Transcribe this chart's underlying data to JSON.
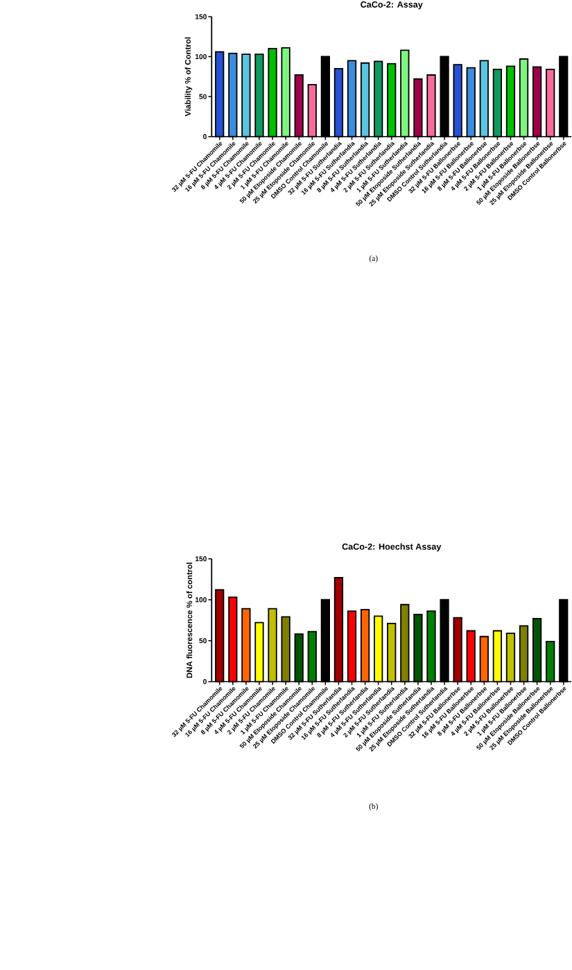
{
  "chart_data": [
    {
      "type": "bar",
      "title": "CaCo-2: Assay",
      "ylabel": "Viability % of Control",
      "categories": [
        "32 µM 5-FU Chamomile",
        "16 µM 5-FU Chamomile",
        "8 µM 5-FU Chamomile",
        "4 µM 5-FU Chamomile",
        "2 µM 5-FU Chamomile",
        "1 µM 5-FU Chamomile",
        "50 µM Etoposide Chamomile",
        "25 µM Etoposide Chamomile",
        "DMSO Control Chamomile",
        "32 µM 5-FU Sutherlandia",
        "16 µM 5-FU Sutherlandia",
        "8 µM 5-FU Sutherlandia",
        "4 µM 5-FU Sutherlandia",
        "2 µM 5-FU Sutherlandia",
        "1 µM 5-FU Sutherlandia",
        "50 µM Etoposide Sutherlandia",
        "25 µM Etoposide Sutherlandia",
        "DMSO Control Sutherlandia",
        "32 µM 5-FU Ballonerbse",
        "16 µM 5-FU Ballonerbse",
        "8 µM 5-FU Ballonerbse",
        "4 µM 5-FU Ballonerbse",
        "2 µM 5-FU Ballonerbse",
        "1 µM 5-FU Ballonerbse",
        "50 µM Etoposide Ballonerbse",
        "25 µM Etoposide Ballonerbse",
        "DMSO Control Ballonerbse"
      ],
      "values": [
        106,
        104,
        103,
        103,
        110,
        111,
        77,
        65,
        100,
        85,
        95,
        92,
        94,
        91,
        108,
        72,
        77,
        100,
        90,
        86,
        95,
        84,
        88,
        97,
        87,
        84,
        100
      ],
      "colors": [
        "#2651d4",
        "#3c8ce0",
        "#5bc4e0",
        "#0f9a60",
        "#00c000",
        "#7ff57f",
        "#a0004a",
        "#f76b9a",
        "#000000",
        "#2651d4",
        "#3c8ce0",
        "#5bc4e0",
        "#0f9a60",
        "#00c000",
        "#7ff57f",
        "#a0004a",
        "#f76b9a",
        "#000000",
        "#2651d4",
        "#3c8ce0",
        "#5bc4e0",
        "#0f9a60",
        "#00c000",
        "#7ff57f",
        "#a0004a",
        "#f76b9a",
        "#000000"
      ],
      "ylim": [
        0,
        150
      ],
      "yticks": [
        0,
        50,
        100,
        150
      ],
      "annotations": [
        "(a)"
      ]
    },
    {
      "type": "bar",
      "title": "CaCo-2: Hoechst Assay",
      "ylabel": "DNA fluorescence % of control",
      "categories": [
        "32 µM 5-FU Chamomile",
        "16 µM 5-FU Chamomile",
        "8 µM 5-FU Chamomile",
        "4 µM 5-FU Chamomile",
        "2 µM 5-FU Chamomile",
        "1 µM 5-FU Chamomile",
        "50 µM Etoposide Chamomile",
        "25 µM Etoposide Chamomile",
        "DMSO Control Chamomile",
        "32 µM 5-FU Sutherlandia",
        "16 µM 5-FU Sutherlandia",
        "8 µM 5-FU Sutherlandia",
        "4 µM 5-FU Sutherlandia",
        "2 µM 5-FU Sutherlandia",
        "1 µM 5-FU Sutherlandia",
        "50 µM Etoposide Sutherlandia",
        "25 µM Etoposide Sutherlandia",
        "DMSO Control Sutherlandia",
        "32 µM 5-FU Ballonerbse",
        "16 µM 5-FU Ballonerbse",
        "8 µM 5-FU Ballonerbse",
        "4 µM 5-FU Ballonerbse",
        "2 µM 5-FU Ballonerbse",
        "1 µM 5-FU Ballonerbse",
        "50 µM Etoposide Ballonerbse",
        "25 µM Etoposide Ballonerbse",
        "DMSO Control Ballonerbse"
      ],
      "values": [
        112,
        103,
        89,
        72,
        89,
        79,
        58,
        61,
        100,
        127,
        86,
        88,
        80,
        71,
        94,
        82,
        86,
        100,
        78,
        62,
        55,
        62,
        59,
        68,
        77,
        49,
        100
      ],
      "colors": [
        "#a00000",
        "#ff0000",
        "#ff6600",
        "#ffff00",
        "#c0c000",
        "#808000",
        "#005500",
        "#008000",
        "#000000",
        "#a00000",
        "#ff0000",
        "#ff6600",
        "#ffff00",
        "#c0c000",
        "#808000",
        "#005500",
        "#008000",
        "#000000",
        "#a00000",
        "#ff0000",
        "#ff6600",
        "#ffff00",
        "#c0c000",
        "#808000",
        "#005500",
        "#008000",
        "#000000"
      ],
      "ylim": [
        0,
        150
      ],
      "yticks": [
        0,
        50,
        100,
        150
      ],
      "annotations": [
        "(b)"
      ]
    }
  ]
}
